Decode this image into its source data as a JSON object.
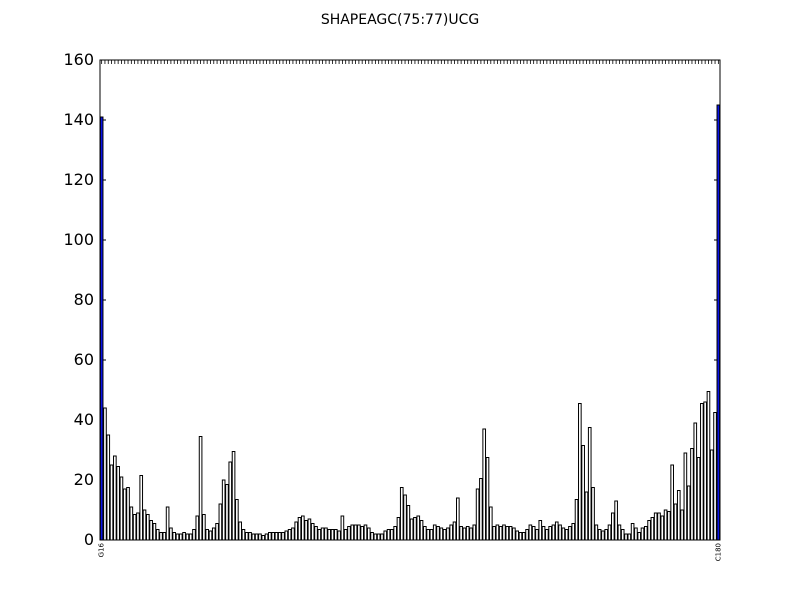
{
  "chart_data": {
    "type": "bar",
    "title": "SHAPEAGC(75:77)UCG",
    "xlabel": "",
    "ylabel": "",
    "ylim": [
      0,
      160
    ],
    "yticks": [
      0,
      20,
      40,
      60,
      80,
      100,
      120,
      140,
      160
    ],
    "grid": false,
    "legend": "none",
    "colors": {
      "highlight": "#0a14e6",
      "default": "#ffffff",
      "edge": "#000000"
    },
    "first_x_label": "G16",
    "last_x_label": "C180",
    "values": [
      141,
      44,
      35,
      25,
      28,
      24.5,
      21,
      17,
      17.5,
      11,
      8.5,
      9,
      21.5,
      10,
      8.5,
      6.5,
      5.5,
      3.5,
      2.5,
      2.5,
      11,
      4,
      2.5,
      2,
      2,
      2.5,
      2,
      2,
      3.5,
      8,
      34.5,
      8.5,
      3.5,
      3,
      4,
      5.5,
      12,
      20,
      18.5,
      26,
      29.5,
      13.5,
      6,
      3.5,
      2.5,
      2.5,
      2,
      2,
      2,
      1.5,
      2,
      2.5,
      2.5,
      2.5,
      2.5,
      2.5,
      3,
      3.5,
      4,
      6,
      7.5,
      8,
      6.5,
      7,
      5.5,
      4.5,
      3.5,
      4,
      4,
      3.5,
      3.5,
      3.5,
      3,
      8,
      3.5,
      4.5,
      5,
      5,
      5,
      4.5,
      5,
      4,
      2.5,
      2,
      2,
      2,
      3,
      3.5,
      3.5,
      4.5,
      7.5,
      17.5,
      15,
      11.5,
      7,
      7.5,
      8,
      6.5,
      4.5,
      3.5,
      3.5,
      5,
      4.5,
      4,
      3.5,
      4,
      5,
      6,
      14,
      4.5,
      4,
      4.5,
      4,
      5,
      17,
      20.5,
      37,
      27.5,
      11,
      4.5,
      5,
      4.5,
      5,
      4.5,
      4.5,
      4,
      3,
      2.5,
      2.5,
      3.5,
      5,
      4.5,
      3.5,
      6.5,
      4.5,
      3.5,
      4.5,
      5,
      6,
      5,
      4,
      3.5,
      4.5,
      5.5,
      13.5,
      45.5,
      31.5,
      16,
      37.5,
      17.5,
      5,
      3.5,
      3,
      3.5,
      5,
      9,
      13,
      5,
      3.5,
      2,
      2,
      5.5,
      4,
      2.5,
      4,
      4.5,
      6.5,
      7.5,
      9,
      9,
      8,
      10,
      9.5,
      25,
      12,
      16.5,
      10,
      29,
      18,
      30.5,
      39,
      27.5,
      45.5,
      46,
      49.5,
      30,
      42.5,
      145
    ]
  }
}
